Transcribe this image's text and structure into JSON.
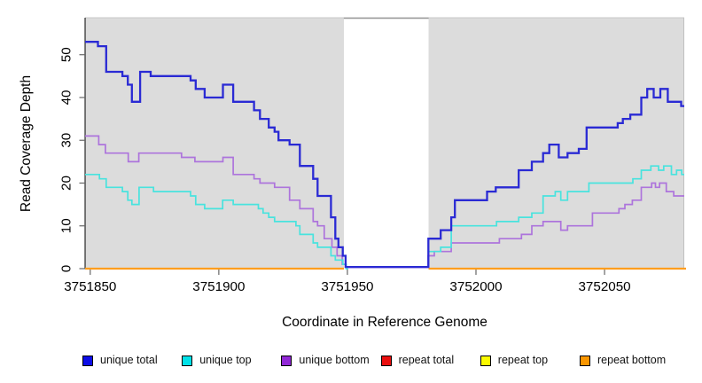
{
  "chart_data": {
    "type": "step-line",
    "title": "",
    "xlabel": "Coordinate in Reference Genome",
    "ylabel": "Read Coverage Depth",
    "x_range": [
      3751848,
      3752081
    ],
    "y_max": 58.23,
    "x_ticks": [
      3751850,
      3751900,
      3751950,
      3752000,
      3752050
    ],
    "y_ticks": [
      0,
      10,
      20,
      30,
      40,
      50
    ],
    "plot_bg": "#DCDCDC",
    "gap_region": {
      "x0": 3751948.6,
      "x1": 3751981.6,
      "color": "#FFFFFF",
      "top_line_color": "#9A9A9A"
    },
    "axis_color": "#000000",
    "tick_color": "#666666",
    "grid": "off",
    "legend_position": "bottom",
    "series": [
      {
        "name": "repeat total",
        "color": "#EA0F0F",
        "width": 1.5,
        "segments": [
          {
            "end": 3751948.6,
            "points": [
              [
                3751848,
                0
              ]
            ]
          },
          {
            "end": 3752081.7,
            "points": [
              [
                3751981.6,
                0
              ]
            ]
          }
        ]
      },
      {
        "name": "repeat top",
        "color": "#FBFB00",
        "width": 1.5,
        "segments": [
          {
            "end": 3751948.6,
            "points": [
              [
                3751848,
                0
              ]
            ]
          },
          {
            "end": 3752081.7,
            "points": [
              [
                3751981.6,
                0
              ]
            ]
          }
        ]
      },
      {
        "name": "repeat bottom",
        "color": "#FF9D1E",
        "width": 2.2,
        "segments": [
          {
            "end": 3751948.6,
            "points": [
              [
                3751848,
                0
              ]
            ]
          },
          {
            "end": 3752081.7,
            "points": [
              [
                3751981.6,
                0
              ]
            ]
          }
        ]
      },
      {
        "name": "unique bottom",
        "color": "#AD74DC",
        "width": 1.7,
        "segments": [
          {
            "end": 3752081,
            "points": [
              [
                3751848,
                31
              ],
              [
                3751853.3,
                29
              ],
              [
                3751855.9,
                27
              ],
              [
                3751864.8,
                25
              ],
              [
                3751868.9,
                27
              ],
              [
                3751885.5,
                26
              ],
              [
                3751890.7,
                25
              ],
              [
                3751901.6,
                26
              ],
              [
                3751905.6,
                22
              ],
              [
                3751913.7,
                21
              ],
              [
                3751916,
                20
              ],
              [
                3751921.7,
                19
              ],
              [
                3751927.5,
                16
              ],
              [
                3751931.5,
                14
              ],
              [
                3751936.7,
                11
              ],
              [
                3751938.4,
                10
              ],
              [
                3751941,
                7
              ],
              [
                3751944,
                5
              ],
              [
                3751946,
                3
              ],
              [
                3751948,
                1
              ],
              [
                3751949.5,
                0.3
              ],
              [
                3751981.4,
                3
              ],
              [
                3751983.8,
                4
              ],
              [
                3751990.4,
                6
              ],
              [
                3752009.1,
                7
              ],
              [
                3752017.7,
                8
              ],
              [
                3752021.7,
                10
              ],
              [
                3752026.1,
                11
              ],
              [
                3752033,
                9
              ],
              [
                3752035.6,
                10
              ],
              [
                3752045.3,
                13
              ],
              [
                3752055.6,
                14
              ],
              [
                3752057.9,
                15
              ],
              [
                3752060.8,
                16
              ],
              [
                3752064.3,
                19
              ],
              [
                3752068.3,
                20
              ],
              [
                3752069.8,
                19
              ],
              [
                3752071.4,
                20
              ],
              [
                3752074,
                18
              ],
              [
                3752076.9,
                17
              ]
            ]
          }
        ]
      },
      {
        "name": "unique top",
        "color": "#48E3DE",
        "width": 1.7,
        "segments": [
          {
            "end": 3751950.3,
            "points": [
              [
                3751848,
                22
              ],
              [
                3751853.6,
                21
              ],
              [
                3751856.2,
                19
              ],
              [
                3751862.5,
                18
              ],
              [
                3751864.6,
                16
              ],
              [
                3751866.2,
                15
              ],
              [
                3751869,
                19
              ],
              [
                3751874.6,
                18
              ],
              [
                3751889,
                17
              ],
              [
                3751891,
                15
              ],
              [
                3751894.5,
                14
              ],
              [
                3751901.5,
                16
              ],
              [
                3751905.6,
                15
              ],
              [
                3751915.4,
                14
              ],
              [
                3751917.2,
                13
              ],
              [
                3751919.4,
                12
              ],
              [
                3751921.7,
                11
              ],
              [
                3751930,
                10
              ],
              [
                3751931.5,
                8
              ],
              [
                3751936.7,
                6
              ],
              [
                3751938.4,
                5
              ],
              [
                3751943.6,
                3
              ],
              [
                3751945.3,
                2
              ],
              [
                3751948.2,
                1
              ],
              [
                3751949.5,
                0
              ]
            ]
          },
          {
            "end": 3752081,
            "points": [
              [
                3751981.5,
                4
              ],
              [
                3751986.3,
                5
              ],
              [
                3751990.4,
                10
              ],
              [
                3752008,
                11
              ],
              [
                3752016.6,
                12
              ],
              [
                3752021.7,
                13
              ],
              [
                3752026.1,
                17
              ],
              [
                3752030.8,
                18
              ],
              [
                3752033,
                16
              ],
              [
                3752035.6,
                18
              ],
              [
                3752043.9,
                20
              ],
              [
                3752061,
                21
              ],
              [
                3752064.3,
                23
              ],
              [
                3752068,
                24
              ],
              [
                3752071,
                23
              ],
              [
                3752073,
                24
              ],
              [
                3752076,
                22
              ],
              [
                3752078,
                23
              ],
              [
                3752080,
                22
              ]
            ]
          }
        ]
      },
      {
        "name": "unique total",
        "color": "#2A2AD4",
        "width": 2.3,
        "segments": [
          {
            "end": 3752081,
            "points": [
              [
                3751848,
                53
              ],
              [
                3751853,
                52
              ],
              [
                3751856.2,
                46
              ],
              [
                3751862.5,
                45
              ],
              [
                3751864.6,
                43
              ],
              [
                3751866.2,
                39
              ],
              [
                3751869.4,
                46
              ],
              [
                3751873.5,
                45
              ],
              [
                3751889,
                44
              ],
              [
                3751891,
                42
              ],
              [
                3751894.5,
                40
              ],
              [
                3751901.6,
                43
              ],
              [
                3751905.6,
                39
              ],
              [
                3751913.7,
                37
              ],
              [
                3751916,
                35
              ],
              [
                3751919.4,
                33
              ],
              [
                3751921.7,
                32
              ],
              [
                3751923.2,
                30
              ],
              [
                3751927.5,
                29
              ],
              [
                3751931.5,
                24
              ],
              [
                3751936.7,
                21
              ],
              [
                3751938.4,
                17
              ],
              [
                3751943.6,
                12
              ],
              [
                3751945.3,
                7
              ],
              [
                3751946.5,
                5
              ],
              [
                3751948.2,
                3
              ],
              [
                3751949.3,
                0.4
              ],
              [
                3751981.5,
                7
              ],
              [
                3751986.3,
                9
              ],
              [
                3751990.4,
                12
              ],
              [
                3751991.8,
                16
              ],
              [
                3752004.3,
                18
              ],
              [
                3752007.7,
                19
              ],
              [
                3752016.6,
                23
              ],
              [
                3752021.7,
                25
              ],
              [
                3752026.1,
                27
              ],
              [
                3752028.5,
                29
              ],
              [
                3752032.2,
                26
              ],
              [
                3752035.6,
                27
              ],
              [
                3752040,
                28
              ],
              [
                3752043,
                33
              ],
              [
                3752055.1,
                34
              ],
              [
                3752057.1,
                35
              ],
              [
                3752060,
                36
              ],
              [
                3752064.3,
                40
              ],
              [
                3752066.6,
                42
              ],
              [
                3752069.1,
                40
              ],
              [
                3752071.7,
                42
              ],
              [
                3752074.6,
                39
              ],
              [
                3752079.8,
                38
              ]
            ]
          }
        ]
      }
    ],
    "legend": [
      {
        "label": "unique total",
        "swatch": "#0D0DE6"
      },
      {
        "label": "unique top",
        "swatch": "#00E1E8"
      },
      {
        "label": "unique bottom",
        "swatch": "#9128D6"
      },
      {
        "label": "repeat total",
        "swatch": "#EA0F0F"
      },
      {
        "label": "repeat top",
        "swatch": "#FBFB00"
      },
      {
        "label": "repeat bottom",
        "swatch": "#FA9600"
      }
    ]
  }
}
